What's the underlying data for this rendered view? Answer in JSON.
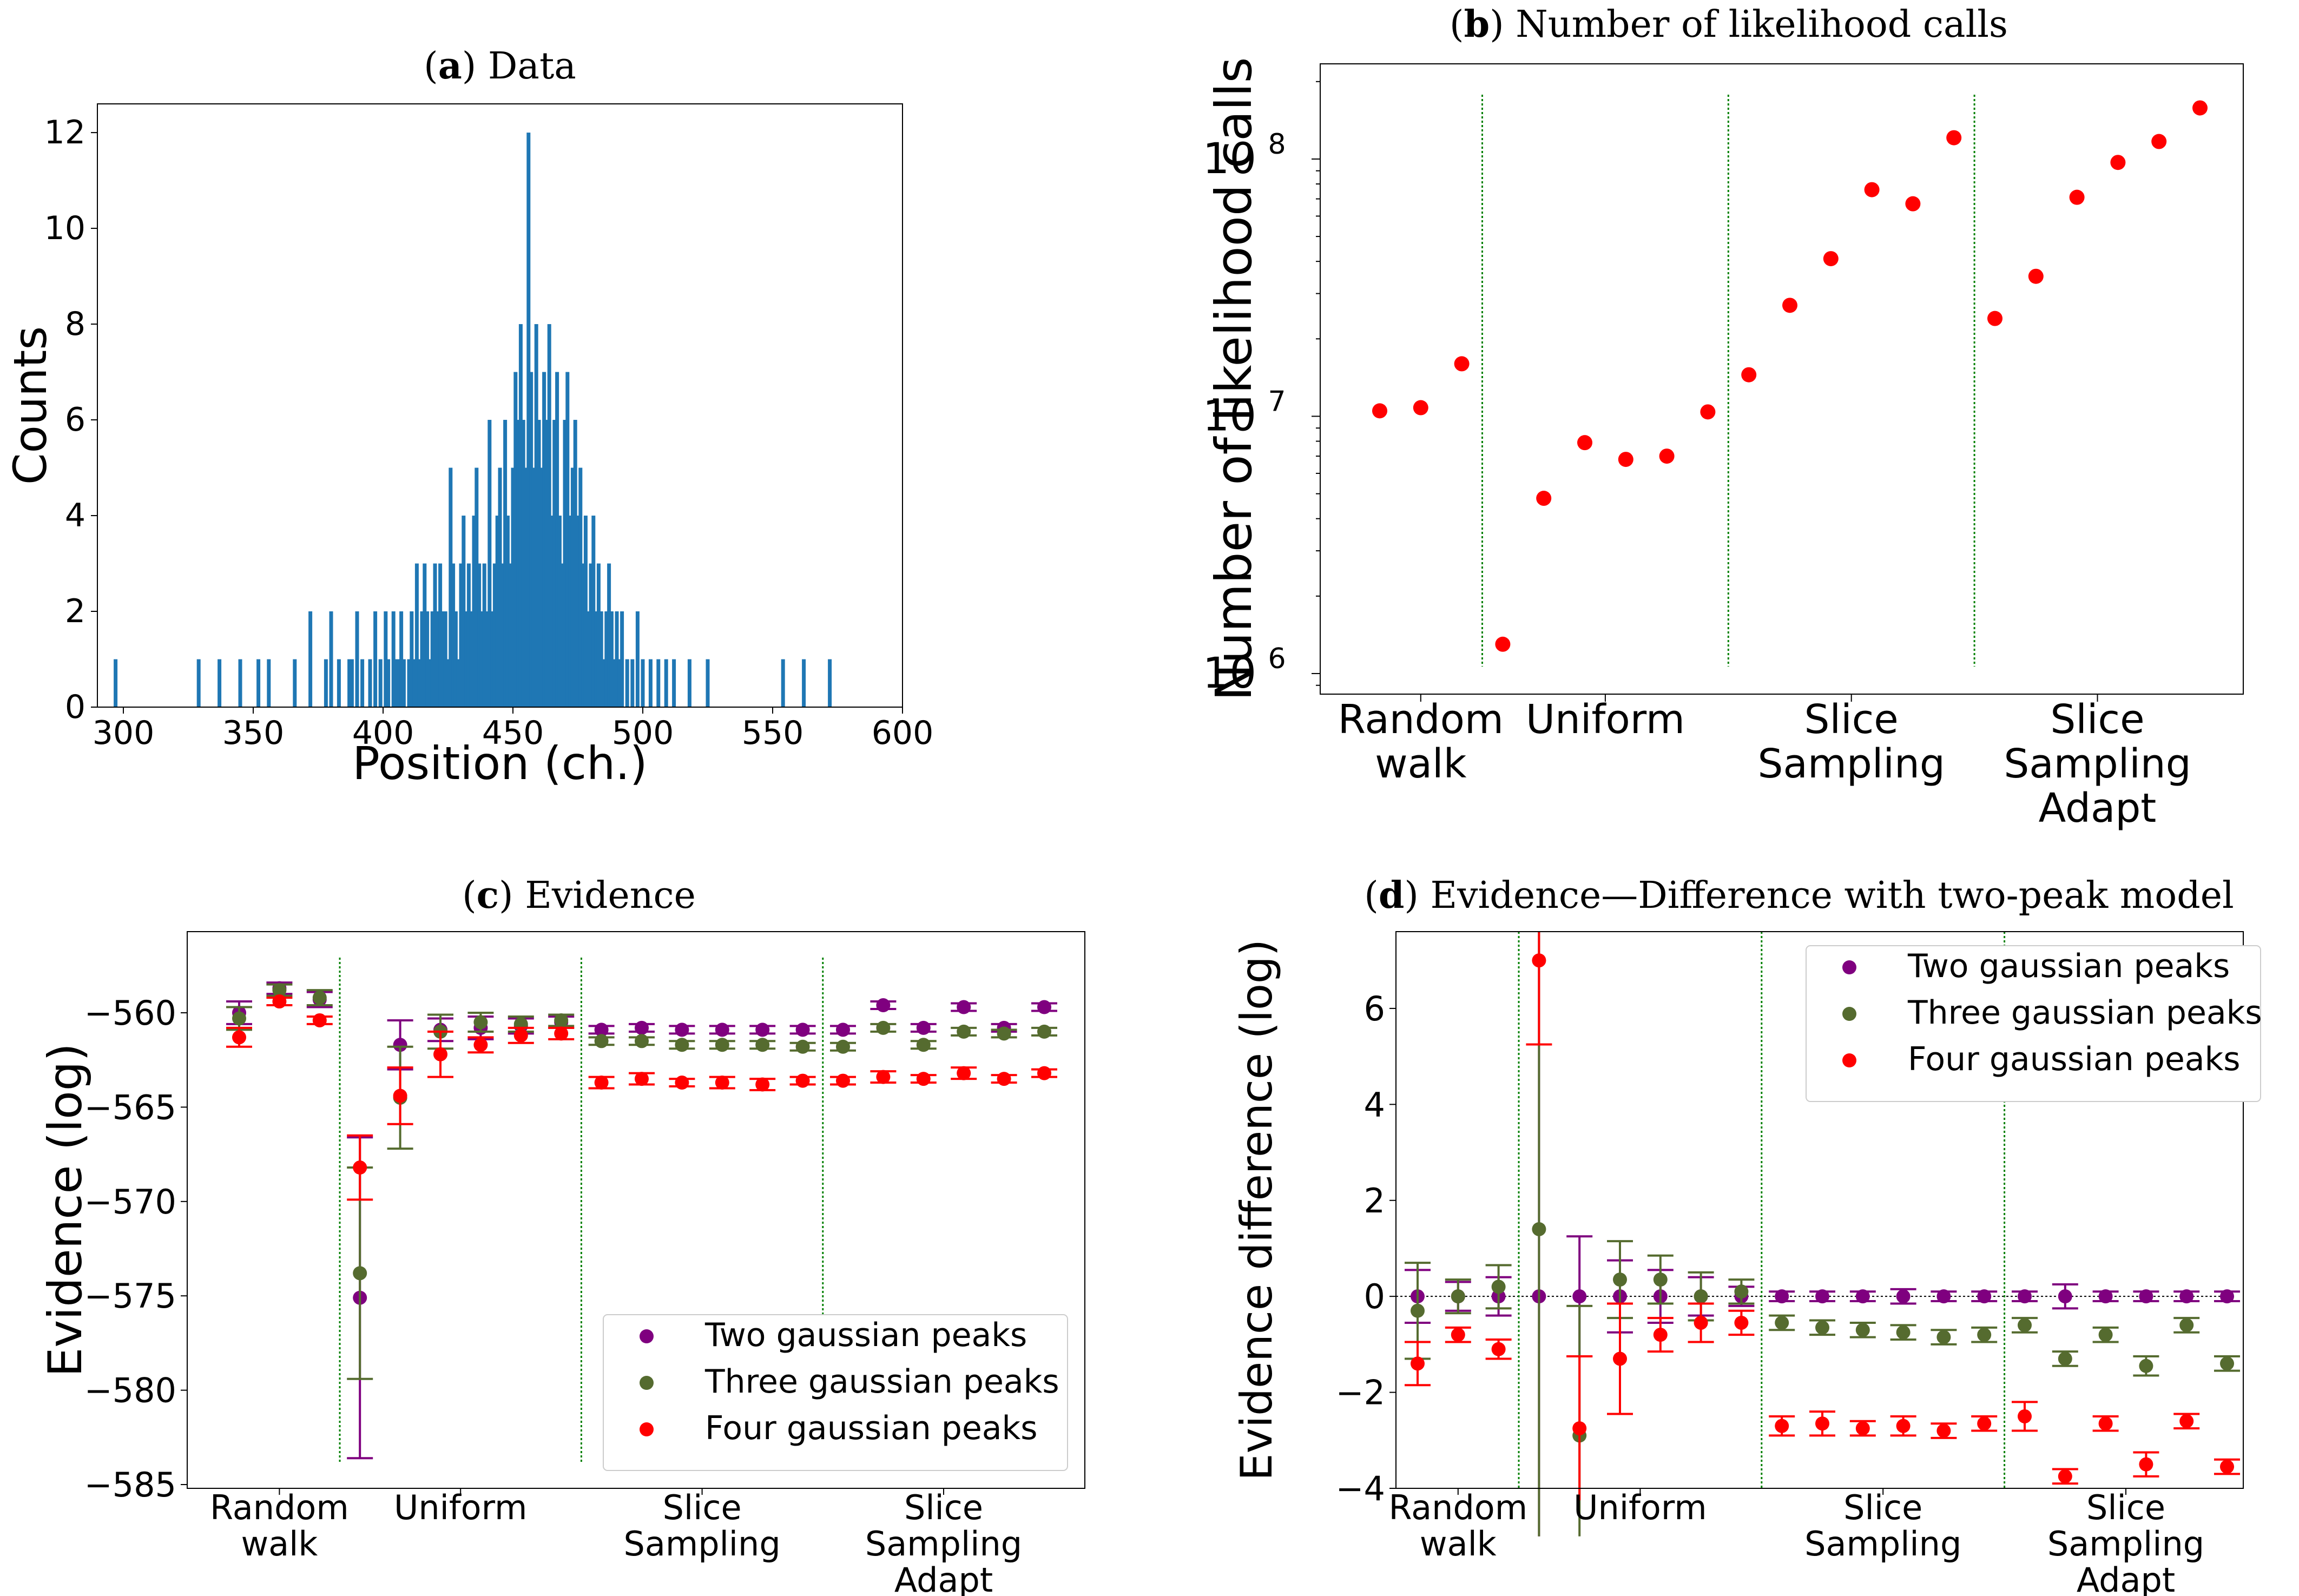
{
  "colors": {
    "hist": "#1f77b4",
    "two": "#7f007f",
    "three": "#556b2f",
    "four": "#ff0000",
    "separator": "#008000"
  },
  "legend": {
    "two": "Two gaussian peaks",
    "three": "Three gaussian peaks",
    "four": "Four gaussian peaks"
  },
  "chart_data": [
    {
      "id": "a",
      "type": "bar",
      "title_bold": "a",
      "title_rest": " Data",
      "xlabel": "Position (ch.)",
      "ylabel": "Counts",
      "xlim": [
        290,
        600
      ],
      "ylim": [
        0,
        12.6
      ],
      "xticks": [
        300,
        350,
        400,
        450,
        500,
        550,
        600
      ],
      "yticks": [
        0,
        2,
        4,
        6,
        8,
        10,
        12
      ],
      "x": [
        297,
        329,
        337,
        345,
        352,
        356,
        366,
        372,
        378,
        380,
        383,
        387,
        388,
        390,
        392,
        395,
        397,
        399,
        401,
        402,
        404,
        405,
        406,
        407,
        408,
        410,
        411,
        412,
        413,
        414,
        415,
        416,
        417,
        418,
        419,
        420,
        421,
        422,
        423,
        424,
        425,
        426,
        427,
        428,
        429,
        430,
        431,
        432,
        433,
        434,
        435,
        436,
        437,
        438,
        439,
        440,
        441,
        442,
        443,
        444,
        445,
        446,
        447,
        448,
        449,
        450,
        451,
        452,
        453,
        454,
        455,
        456,
        457,
        458,
        459,
        460,
        461,
        462,
        463,
        464,
        465,
        466,
        467,
        468,
        469,
        470,
        471,
        472,
        473,
        474,
        475,
        476,
        477,
        478,
        479,
        480,
        481,
        482,
        483,
        484,
        485,
        486,
        487,
        488,
        489,
        490,
        491,
        492,
        494,
        496,
        498,
        500,
        503,
        506,
        509,
        512,
        518,
        525,
        554,
        562,
        572
      ],
      "values": [
        1,
        1,
        1,
        1,
        1,
        1,
        1,
        2,
        1,
        2,
        1,
        1,
        1,
        2,
        1,
        1,
        2,
        1,
        2,
        1,
        2,
        1,
        1,
        2,
        1,
        1,
        2,
        1,
        3,
        1,
        2,
        3,
        2,
        1,
        2,
        3,
        2,
        3,
        2,
        2,
        1,
        5,
        3,
        2,
        1,
        3,
        4,
        2,
        3,
        2,
        4,
        5,
        3,
        2,
        3,
        2,
        6,
        2,
        3,
        4,
        5,
        3,
        6,
        4,
        3,
        5,
        7,
        6,
        8,
        6,
        5,
        12,
        7,
        5,
        8,
        6,
        5,
        7,
        6,
        8,
        4,
        6,
        7,
        4,
        3,
        6,
        7,
        4,
        5,
        6,
        4,
        5,
        3,
        4,
        2,
        3,
        4,
        2,
        3,
        2,
        1,
        2,
        3,
        2,
        1,
        2,
        1,
        2,
        1,
        1,
        2,
        1,
        1,
        1,
        1,
        1,
        1,
        1,
        1,
        1,
        1
      ]
    },
    {
      "id": "b",
      "type": "scatter",
      "title_bold": "b",
      "title_rest": " Number of likelihood calls",
      "ylabel": "Number of likelihood calls",
      "yscale": "log",
      "ylim_log10": [
        5.92,
        8.37
      ],
      "yticks": [
        {
          "exp": 6,
          "base": "10",
          "sup": "6"
        },
        {
          "exp": 7,
          "base": "10",
          "sup": "7"
        },
        {
          "exp": 8,
          "base": "10",
          "sup": "8"
        }
      ],
      "categories": [
        [
          "Random",
          "walk"
        ],
        [
          "Uniform"
        ],
        [
          "Slice",
          "Sampling"
        ],
        [
          "Slice",
          "Sampling",
          "Adapt"
        ]
      ],
      "values": [
        10500000,
        10800000,
        16000000,
        1300000,
        4800000,
        7900000,
        6800000,
        7000000,
        10400000,
        14500000,
        27000000,
        41000000,
        76000000,
        67000000,
        121000000,
        24000000,
        35000000,
        71000000,
        97000000,
        117000000,
        158000000
      ]
    },
    {
      "id": "c",
      "type": "errorbar-scatter",
      "title_bold": "c",
      "title_rest": " Evidence",
      "ylabel": "Evidence (log)",
      "ylim": [
        -585.2,
        -555.7
      ],
      "yticks": [
        -585,
        -580,
        -575,
        -570,
        -565,
        -560
      ],
      "categories": [
        [
          "Random",
          "walk"
        ],
        [
          "Uniform"
        ],
        [
          "Slice",
          "Sampling"
        ],
        [
          "Slice",
          "Sampling",
          "Adapt"
        ]
      ],
      "legend_position": "lower-right",
      "series": [
        {
          "key": "two",
          "values": [
            -560.0,
            -558.7,
            -559.3,
            -575.1,
            -561.7,
            -560.9,
            -560.8,
            -560.7,
            -560.5,
            -560.9,
            -560.8,
            -560.9,
            -560.9,
            -560.9,
            -560.9,
            -560.9,
            -559.6,
            -560.8,
            -559.7,
            -560.8,
            -559.7
          ],
          "errors": [
            0.6,
            0.3,
            0.4,
            8.5,
            1.3,
            0.6,
            0.6,
            0.4,
            0.3,
            0.2,
            0.2,
            0.2,
            0.2,
            0.2,
            0.2,
            0.2,
            0.2,
            0.2,
            0.2,
            0.2,
            0.2
          ]
        },
        {
          "key": "three",
          "values": [
            -560.3,
            -558.8,
            -559.2,
            -573.8,
            -564.5,
            -561.0,
            -560.5,
            -560.6,
            -560.4,
            -561.5,
            -561.5,
            -561.7,
            -561.7,
            -561.7,
            -561.8,
            -561.8,
            -560.8,
            -561.7,
            -561.0,
            -561.1,
            -561.0
          ],
          "errors": [
            0.6,
            0.3,
            0.4,
            5.6,
            2.7,
            0.9,
            0.5,
            0.4,
            0.3,
            0.2,
            0.2,
            0.2,
            0.2,
            0.2,
            0.2,
            0.2,
            0.2,
            0.2,
            0.2,
            0.2,
            0.2
          ]
        },
        {
          "key": "four",
          "values": [
            -561.3,
            -559.4,
            -560.4,
            -568.2,
            -564.4,
            -562.2,
            -561.7,
            -561.2,
            -561.1,
            -563.7,
            -563.5,
            -563.7,
            -563.7,
            -563.8,
            -563.6,
            -563.6,
            -563.4,
            -563.5,
            -563.2,
            -563.5,
            -563.2
          ],
          "errors": [
            0.5,
            0.2,
            0.2,
            1.7,
            1.5,
            1.2,
            0.4,
            0.4,
            0.3,
            0.3,
            0.3,
            0.2,
            0.3,
            0.3,
            0.2,
            0.2,
            0.3,
            0.2,
            0.3,
            0.2,
            0.2
          ]
        }
      ]
    },
    {
      "id": "d",
      "type": "errorbar-scatter",
      "title_bold": "d",
      "title_rest": " Evidence—Difference with two-peak model",
      "ylabel": "Evidence difference (log)",
      "ylim": [
        -4,
        7.6
      ],
      "yticks": [
        -4,
        -2,
        0,
        2,
        4,
        6
      ],
      "categories": [
        [
          "Random",
          "walk"
        ],
        [
          "Uniform"
        ],
        [
          "Slice",
          "Sampling"
        ],
        [
          "Slice",
          "Sampling",
          "Adapt"
        ]
      ],
      "legend_position": "upper-right",
      "series": [
        {
          "key": "two",
          "values": [
            0,
            0,
            0,
            0,
            0,
            0,
            0,
            0,
            0,
            0,
            0,
            0,
            0,
            0,
            0,
            0,
            0,
            0,
            0,
            0,
            0
          ],
          "errors": [
            0.55,
            0.3,
            0.4,
            8.5,
            1.25,
            0.75,
            0.55,
            0.4,
            0.2,
            0.1,
            0.1,
            0.1,
            0.15,
            0.1,
            0.1,
            0.1,
            0.25,
            0.1,
            0.1,
            0.1,
            0.1
          ]
        },
        {
          "key": "three",
          "values": [
            -0.3,
            0.0,
            0.2,
            1.4,
            -2.9,
            0.35,
            0.35,
            0.0,
            0.1,
            -0.55,
            -0.65,
            -0.7,
            -0.75,
            -0.85,
            -0.8,
            -0.6,
            -1.3,
            -0.8,
            -1.45,
            -0.6,
            -1.4
          ],
          "errors": [
            1.0,
            0.35,
            0.45,
            9.0,
            2.7,
            0.8,
            0.5,
            0.5,
            0.25,
            0.15,
            0.15,
            0.15,
            0.15,
            0.15,
            0.15,
            0.15,
            0.15,
            0.15,
            0.2,
            0.15,
            0.15
          ]
        },
        {
          "key": "four",
          "values": [
            -1.4,
            -0.8,
            -1.1,
            7.0,
            -2.75,
            -1.3,
            -0.8,
            -0.55,
            -0.55,
            -2.7,
            -2.65,
            -2.75,
            -2.7,
            -2.8,
            -2.65,
            -2.5,
            -3.75,
            -2.65,
            -3.5,
            -2.6,
            -3.55
          ],
          "errors": [
            0.45,
            0.15,
            0.2,
            1.75,
            1.5,
            1.15,
            0.35,
            0.4,
            0.25,
            0.2,
            0.25,
            0.15,
            0.2,
            0.15,
            0.15,
            0.3,
            0.15,
            0.15,
            0.25,
            0.15,
            0.15
          ]
        }
      ]
    }
  ]
}
